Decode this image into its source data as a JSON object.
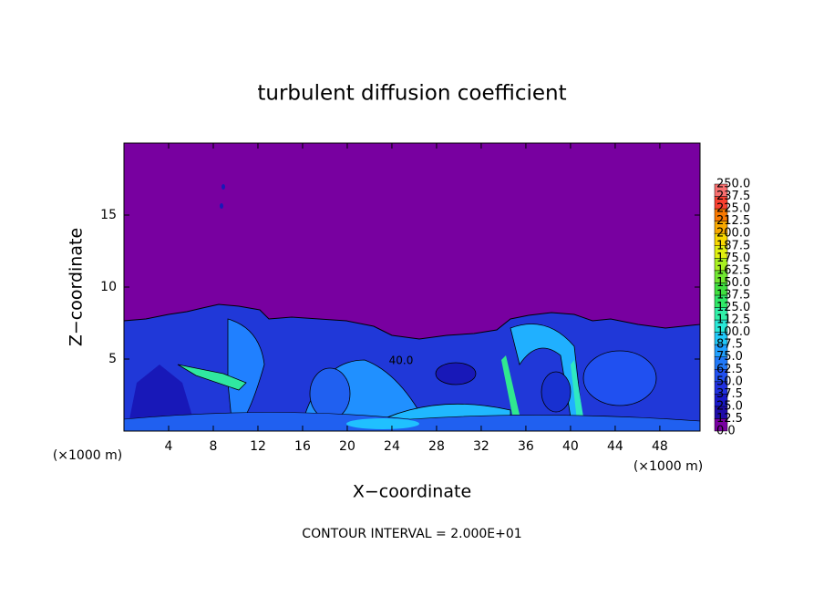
{
  "chart_data": {
    "type": "contour",
    "title": "turbulent diffusion coefficient",
    "x_label": "X−coordinate",
    "y_label": "Z−coordinate",
    "x_unit_label": "(×1000 m)",
    "contour_label": "40.0",
    "footnote": "CONTOUR INTERVAL = 2.000E+01",
    "xlim": [
      0,
      51.6
    ],
    "xticks": [
      4,
      8,
      12,
      16,
      20,
      24,
      28,
      32,
      36,
      40,
      44,
      48
    ],
    "ylim": [
      0,
      20
    ],
    "yticks": [
      5,
      10,
      15
    ],
    "colorbar": {
      "ticks": [
        {
          "value": 0,
          "label": "0.0"
        },
        12.5,
        {
          "value": 25,
          "label": "25.0"
        },
        37.5,
        {
          "value": 50,
          "label": "50.0"
        },
        62.5,
        {
          "value": 75,
          "label": "75.0"
        },
        87.5,
        {
          "value": 100,
          "label": "100.0"
        },
        112.5,
        {
          "value": 125,
          "label": "125.0"
        },
        137.5,
        {
          "value": 150,
          "label": "150.0"
        },
        162.5,
        {
          "value": 175,
          "label": "175.0"
        },
        187.5,
        {
          "value": 200,
          "label": "200.0"
        },
        212.5,
        {
          "value": 225,
          "label": "225.0"
        },
        237.5,
        {
          "value": 250,
          "label": "250.0"
        }
      ],
      "colors": [
        "#7800a0",
        "#1e0ca8",
        "#1818c8",
        "#2030e0",
        "#2050f0",
        "#2078f8",
        "#20a0ff",
        "#20c8f8",
        "#28e8d8",
        "#30f0a8",
        "#30e868",
        "#40e040",
        "#70e830",
        "#a8f020",
        "#e0f010",
        "#f8d800",
        "#f8a800",
        "#f87800",
        "#f84030",
        "#f87070"
      ]
    }
  }
}
